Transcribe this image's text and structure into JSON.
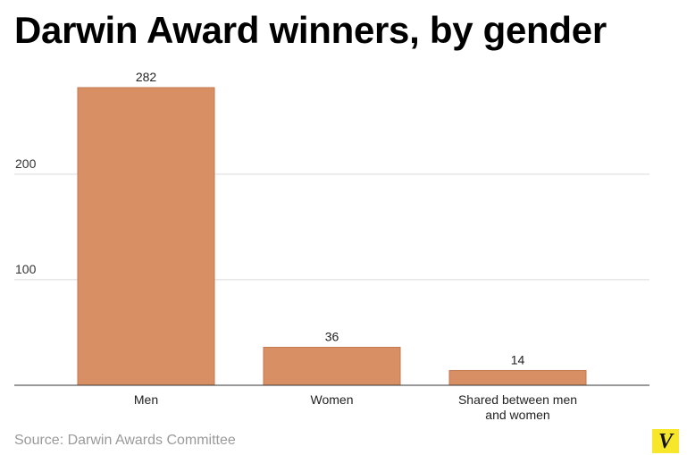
{
  "chart_data": {
    "type": "bar",
    "title": "Darwin Award winners, by gender",
    "categories": [
      "Men",
      "Women",
      "Shared between men and women"
    ],
    "category_lines": [
      [
        "Men"
      ],
      [
        "Women"
      ],
      [
        "Shared between men",
        "and women"
      ]
    ],
    "values": [
      282,
      36,
      14
    ],
    "data_labels": [
      "282",
      "36",
      "14"
    ],
    "ylim": [
      0,
      282
    ],
    "yticks": [
      100,
      200
    ],
    "ytick_labels": [
      "100",
      "200"
    ],
    "grid": true,
    "bar_color": "#d98f64",
    "bar_edge_color": "#c47a50",
    "grid_color": "#d9d9d9",
    "axis_color": "#333333"
  },
  "source": "Source: Darwin Awards Committee",
  "logo": {
    "text": "V",
    "color": "#f7e62a"
  }
}
